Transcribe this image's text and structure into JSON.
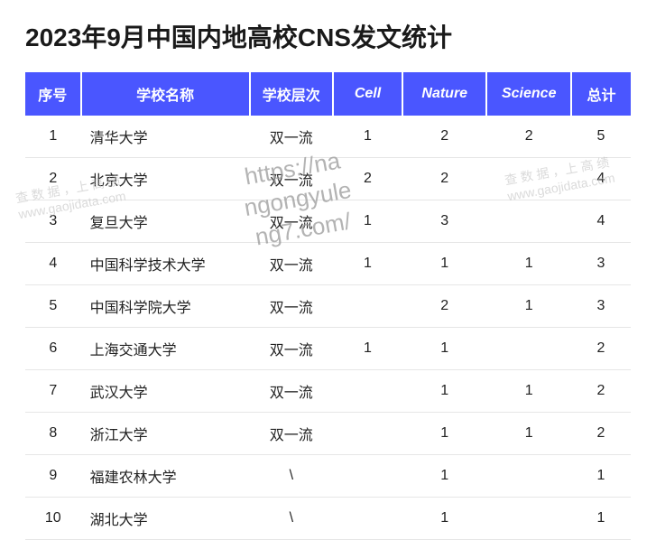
{
  "title": "2023年9月中国内地高校CNS发文统计",
  "header_bg": "#4a56ff",
  "header_fg": "#ffffff",
  "row_border": "#e6e6e6",
  "text_color": "#222222",
  "columns": {
    "seq": "序号",
    "name": "学校名称",
    "tier": "学校层次",
    "cell": "Cell",
    "nature": "Nature",
    "science": "Science",
    "total": "总计"
  },
  "rows": [
    {
      "seq": "1",
      "name": "清华大学",
      "tier": "双一流",
      "cell": "1",
      "nature": "2",
      "science": "2",
      "total": "5"
    },
    {
      "seq": "2",
      "name": "北京大学",
      "tier": "双一流",
      "cell": "2",
      "nature": "2",
      "science": "",
      "total": "4"
    },
    {
      "seq": "3",
      "name": "复旦大学",
      "tier": "双一流",
      "cell": "1",
      "nature": "3",
      "science": "",
      "total": "4"
    },
    {
      "seq": "4",
      "name": "中国科学技术大学",
      "tier": "双一流",
      "cell": "1",
      "nature": "1",
      "science": "1",
      "total": "3"
    },
    {
      "seq": "5",
      "name": "中国科学院大学",
      "tier": "双一流",
      "cell": "",
      "nature": "2",
      "science": "1",
      "total": "3"
    },
    {
      "seq": "6",
      "name": "上海交通大学",
      "tier": "双一流",
      "cell": "1",
      "nature": "1",
      "science": "",
      "total": "2"
    },
    {
      "seq": "7",
      "name": "武汉大学",
      "tier": "双一流",
      "cell": "",
      "nature": "1",
      "science": "1",
      "total": "2"
    },
    {
      "seq": "8",
      "name": "浙江大学",
      "tier": "双一流",
      "cell": "",
      "nature": "1",
      "science": "1",
      "total": "2"
    },
    {
      "seq": "9",
      "name": "福建农林大学",
      "tier": "\\",
      "cell": "",
      "nature": "1",
      "science": "",
      "total": "1"
    },
    {
      "seq": "10",
      "name": "湖北大学",
      "tier": "\\",
      "cell": "",
      "nature": "1",
      "science": "",
      "total": "1"
    }
  ],
  "watermarks": {
    "center": "https://na\nngongyule\nng7.com/",
    "left": "查 数 据 ，上 高 绩\nwww.gaojidata.com",
    "right": "查 数 据 ，上 高 绩\nwww.gaojidata.com"
  }
}
